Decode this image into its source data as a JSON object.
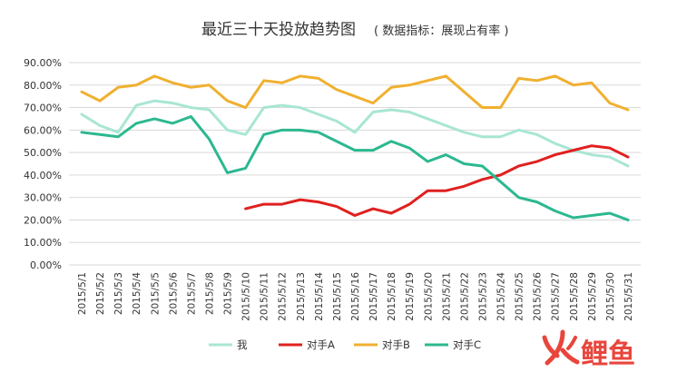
{
  "chart_data": {
    "type": "line",
    "title": "最近三十天投放趋势图",
    "subtitle": "( 数据指标：展现占有率 )",
    "xlabel": "",
    "ylabel": "",
    "ylim": [
      0,
      90
    ],
    "yticks": [
      "0.00%",
      "10.00%",
      "20.00%",
      "30.00%",
      "40.00%",
      "50.00%",
      "60.00%",
      "70.00%",
      "80.00%",
      "90.00%"
    ],
    "grid": true,
    "legend_position": "bottom",
    "categories": [
      "2015/5/1",
      "2015/5/2",
      "2015/5/3",
      "2015/5/4",
      "2015/5/5",
      "2015/5/6",
      "2015/5/7",
      "2015/5/8",
      "2015/5/9",
      "2015/5/10",
      "2015/5/11",
      "2015/5/12",
      "2015/5/13",
      "2015/5/14",
      "2015/5/15",
      "2015/5/16",
      "2015/5/17",
      "2015/5/18",
      "2015/5/19",
      "2015/5/20",
      "2015/5/21",
      "2015/5/22",
      "2015/5/23",
      "2015/5/24",
      "2015/5/25",
      "2015/5/26",
      "2015/5/27",
      "2015/5/28",
      "2015/5/29",
      "2015/5/30",
      "2015/5/31"
    ],
    "series": [
      {
        "name": "我",
        "color": "#a8e6d4",
        "values": [
          67,
          62,
          59,
          71,
          73,
          72,
          70,
          69,
          60,
          58,
          70,
          71,
          70,
          67,
          64,
          59,
          68,
          69,
          68,
          65,
          62,
          59,
          57,
          57,
          60,
          58,
          54,
          51,
          49,
          48,
          44
        ]
      },
      {
        "name": "对手A",
        "color": "#e02020",
        "values": [
          null,
          null,
          null,
          null,
          null,
          null,
          null,
          null,
          null,
          25,
          27,
          27,
          29,
          28,
          26,
          22,
          25,
          23,
          27,
          33,
          33,
          35,
          38,
          40,
          44,
          46,
          49,
          51,
          53,
          52,
          48
        ]
      },
      {
        "name": "对手B",
        "color": "#f0b030",
        "values": [
          77,
          73,
          79,
          80,
          84,
          81,
          79,
          80,
          73,
          70,
          82,
          81,
          84,
          83,
          78,
          75,
          72,
          79,
          80,
          82,
          84,
          77,
          70,
          70,
          83,
          82,
          84,
          80,
          81,
          72,
          69
        ]
      },
      {
        "name": "对手C",
        "color": "#2cb890",
        "values": [
          59,
          58,
          57,
          63,
          65,
          63,
          66,
          56,
          41,
          43,
          58,
          60,
          60,
          59,
          55,
          51,
          51,
          55,
          52,
          46,
          49,
          45,
          44,
          37,
          30,
          28,
          24,
          21,
          22,
          23,
          20
        ]
      }
    ]
  },
  "watermark": {
    "text": "鲤鱼",
    "logo_color": "#e8463c",
    "text_color": "#e8463c"
  }
}
